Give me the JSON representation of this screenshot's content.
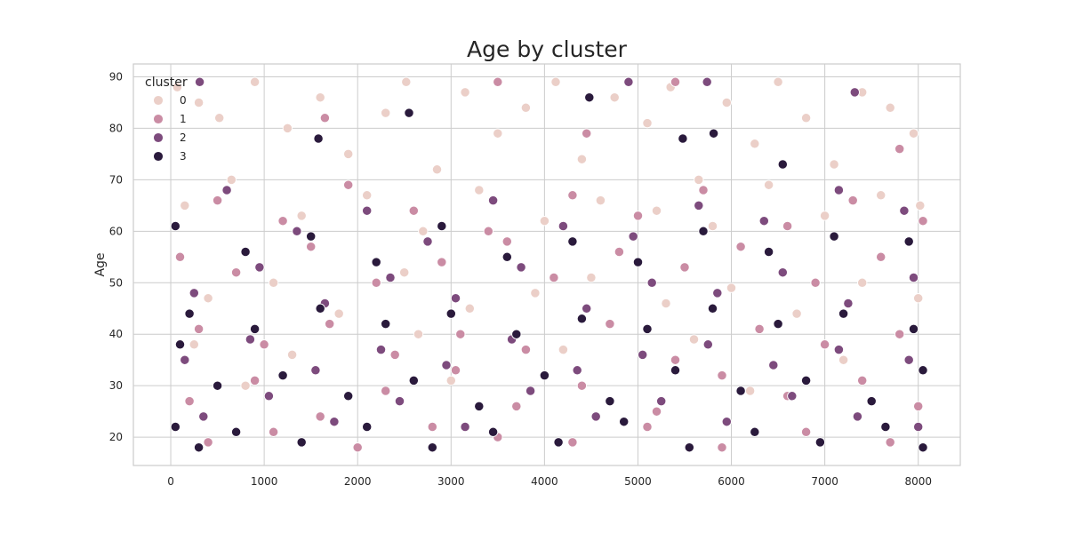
{
  "chart_data": {
    "type": "scatter",
    "title": "Age by cluster",
    "xlabel": "",
    "ylabel": "Age",
    "xlim": [
      -400,
      8450
    ],
    "ylim": [
      14.5,
      92.5
    ],
    "x_ticks": [
      0,
      1000,
      2000,
      3000,
      4000,
      5000,
      6000,
      7000,
      8000
    ],
    "y_ticks": [
      20,
      30,
      40,
      50,
      60,
      70,
      80,
      90
    ],
    "grid": true,
    "legend": {
      "title": "cluster",
      "placement": "top-left",
      "entries": [
        {
          "label": "0",
          "color": "#ebcfc8"
        },
        {
          "label": "1",
          "color": "#ca8ca4"
        },
        {
          "label": "2",
          "color": "#7d4b7d"
        },
        {
          "label": "3",
          "color": "#2a1a3c"
        }
      ]
    },
    "series": [
      {
        "cluster": "0",
        "color": "#ebcfc8",
        "points": [
          [
            70,
            88
          ],
          [
            300,
            85
          ],
          [
            520,
            82
          ],
          [
            900,
            89
          ],
          [
            1250,
            80
          ],
          [
            1600,
            86
          ],
          [
            1900,
            75
          ],
          [
            2300,
            83
          ],
          [
            2520,
            89
          ],
          [
            2850,
            72
          ],
          [
            3150,
            87
          ],
          [
            3500,
            79
          ],
          [
            3800,
            84
          ],
          [
            4120,
            89
          ],
          [
            4400,
            74
          ],
          [
            4750,
            86
          ],
          [
            5100,
            81
          ],
          [
            5350,
            88
          ],
          [
            5650,
            70
          ],
          [
            5950,
            85
          ],
          [
            6250,
            77
          ],
          [
            6500,
            89
          ],
          [
            6800,
            82
          ],
          [
            7100,
            73
          ],
          [
            7400,
            87
          ],
          [
            7700,
            84
          ],
          [
            7950,
            79
          ],
          [
            150,
            65
          ],
          [
            650,
            70
          ],
          [
            1400,
            63
          ],
          [
            2100,
            67
          ],
          [
            2700,
            60
          ],
          [
            3300,
            68
          ],
          [
            4000,
            62
          ],
          [
            4600,
            66
          ],
          [
            5200,
            64
          ],
          [
            5800,
            61
          ],
          [
            6400,
            69
          ],
          [
            7000,
            63
          ],
          [
            7600,
            67
          ],
          [
            8020,
            65
          ],
          [
            400,
            47
          ],
          [
            1100,
            50
          ],
          [
            1800,
            44
          ],
          [
            2500,
            52
          ],
          [
            3200,
            45
          ],
          [
            3900,
            48
          ],
          [
            4500,
            51
          ],
          [
            5300,
            46
          ],
          [
            6000,
            49
          ],
          [
            6700,
            44
          ],
          [
            7400,
            50
          ],
          [
            8000,
            47
          ],
          [
            250,
            38
          ],
          [
            1300,
            36
          ],
          [
            2650,
            40
          ],
          [
            4200,
            37
          ],
          [
            5600,
            39
          ],
          [
            7200,
            35
          ],
          [
            800,
            30
          ],
          [
            3000,
            31
          ],
          [
            6200,
            29
          ]
        ]
      },
      {
        "cluster": "1",
        "color": "#ca8ca4",
        "points": [
          [
            1650,
            82
          ],
          [
            3500,
            89
          ],
          [
            5400,
            89
          ],
          [
            4450,
            79
          ],
          [
            7800,
            76
          ],
          [
            500,
            66
          ],
          [
            1200,
            62
          ],
          [
            1900,
            69
          ],
          [
            2600,
            64
          ],
          [
            3400,
            60
          ],
          [
            4300,
            67
          ],
          [
            5000,
            63
          ],
          [
            5700,
            68
          ],
          [
            6600,
            61
          ],
          [
            7300,
            66
          ],
          [
            8050,
            62
          ],
          [
            100,
            55
          ],
          [
            700,
            52
          ],
          [
            1500,
            57
          ],
          [
            2200,
            50
          ],
          [
            2900,
            54
          ],
          [
            3600,
            58
          ],
          [
            4100,
            51
          ],
          [
            4800,
            56
          ],
          [
            5500,
            53
          ],
          [
            6100,
            57
          ],
          [
            6900,
            50
          ],
          [
            7600,
            55
          ],
          [
            300,
            41
          ],
          [
            1000,
            38
          ],
          [
            1700,
            42
          ],
          [
            2400,
            36
          ],
          [
            3100,
            40
          ],
          [
            3800,
            37
          ],
          [
            4700,
            42
          ],
          [
            5400,
            35
          ],
          [
            6300,
            41
          ],
          [
            7000,
            38
          ],
          [
            7800,
            40
          ],
          [
            200,
            27
          ],
          [
            900,
            31
          ],
          [
            1600,
            24
          ],
          [
            2300,
            29
          ],
          [
            3050,
            33
          ],
          [
            3700,
            26
          ],
          [
            4400,
            30
          ],
          [
            5200,
            25
          ],
          [
            5900,
            32
          ],
          [
            6600,
            28
          ],
          [
            7400,
            31
          ],
          [
            8000,
            26
          ],
          [
            400,
            19
          ],
          [
            1100,
            21
          ],
          [
            2000,
            18
          ],
          [
            2800,
            22
          ],
          [
            3500,
            20
          ],
          [
            4300,
            19
          ],
          [
            5100,
            22
          ],
          [
            5900,
            18
          ],
          [
            6800,
            21
          ],
          [
            7700,
            19
          ]
        ]
      },
      {
        "cluster": "2",
        "color": "#7d4b7d",
        "points": [
          [
            310,
            89
          ],
          [
            2550,
            83
          ],
          [
            4900,
            89
          ],
          [
            5740,
            89
          ],
          [
            7320,
            87
          ],
          [
            600,
            68
          ],
          [
            1350,
            60
          ],
          [
            2100,
            64
          ],
          [
            2750,
            58
          ],
          [
            3450,
            66
          ],
          [
            4200,
            61
          ],
          [
            4950,
            59
          ],
          [
            5650,
            65
          ],
          [
            6350,
            62
          ],
          [
            7150,
            68
          ],
          [
            7850,
            64
          ],
          [
            250,
            48
          ],
          [
            950,
            53
          ],
          [
            1650,
            46
          ],
          [
            2350,
            51
          ],
          [
            3050,
            47
          ],
          [
            3750,
            53
          ],
          [
            4450,
            45
          ],
          [
            5150,
            50
          ],
          [
            5850,
            48
          ],
          [
            6550,
            52
          ],
          [
            7250,
            46
          ],
          [
            7950,
            51
          ],
          [
            150,
            35
          ],
          [
            850,
            39
          ],
          [
            1550,
            33
          ],
          [
            2250,
            37
          ],
          [
            2950,
            34
          ],
          [
            3650,
            39
          ],
          [
            4350,
            33
          ],
          [
            5050,
            36
          ],
          [
            5750,
            38
          ],
          [
            6450,
            34
          ],
          [
            7150,
            37
          ],
          [
            7900,
            35
          ],
          [
            350,
            24
          ],
          [
            1050,
            28
          ],
          [
            1750,
            23
          ],
          [
            2450,
            27
          ],
          [
            3150,
            22
          ],
          [
            3850,
            29
          ],
          [
            4550,
            24
          ],
          [
            5250,
            27
          ],
          [
            5950,
            23
          ],
          [
            6650,
            28
          ],
          [
            7350,
            24
          ],
          [
            8000,
            22
          ]
        ]
      },
      {
        "cluster": "3",
        "color": "#2a1a3c",
        "points": [
          [
            2550,
            83
          ],
          [
            1580,
            78
          ],
          [
            4480,
            86
          ],
          [
            5480,
            78
          ],
          [
            5810,
            79
          ],
          [
            6550,
            73
          ],
          [
            50,
            61
          ],
          [
            800,
            56
          ],
          [
            1500,
            59
          ],
          [
            2200,
            54
          ],
          [
            2900,
            61
          ],
          [
            3600,
            55
          ],
          [
            4300,
            58
          ],
          [
            5000,
            54
          ],
          [
            5700,
            60
          ],
          [
            6400,
            56
          ],
          [
            7100,
            59
          ],
          [
            7900,
            58
          ],
          [
            200,
            44
          ],
          [
            900,
            41
          ],
          [
            1600,
            45
          ],
          [
            2300,
            42
          ],
          [
            3000,
            44
          ],
          [
            3700,
            40
          ],
          [
            4400,
            43
          ],
          [
            5100,
            41
          ],
          [
            5800,
            45
          ],
          [
            6500,
            42
          ],
          [
            7200,
            44
          ],
          [
            7950,
            41
          ],
          [
            100,
            38
          ],
          [
            500,
            30
          ],
          [
            1200,
            32
          ],
          [
            1900,
            28
          ],
          [
            2600,
            31
          ],
          [
            3300,
            26
          ],
          [
            4000,
            32
          ],
          [
            4700,
            27
          ],
          [
            5400,
            33
          ],
          [
            6100,
            29
          ],
          [
            6800,
            31
          ],
          [
            7500,
            27
          ],
          [
            8050,
            33
          ],
          [
            50,
            22
          ],
          [
            300,
            18
          ],
          [
            700,
            21
          ],
          [
            1400,
            19
          ],
          [
            2100,
            22
          ],
          [
            2800,
            18
          ],
          [
            3450,
            21
          ],
          [
            4150,
            19
          ],
          [
            4850,
            23
          ],
          [
            5550,
            18
          ],
          [
            6250,
            21
          ],
          [
            6950,
            19
          ],
          [
            7650,
            22
          ],
          [
            8050,
            18
          ]
        ]
      }
    ]
  }
}
